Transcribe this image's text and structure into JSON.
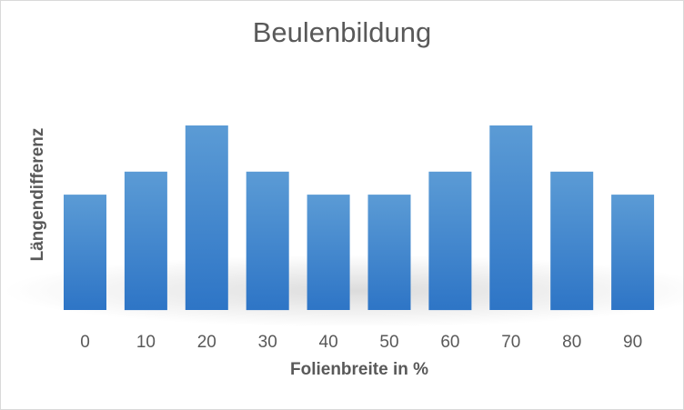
{
  "chart_data": {
    "type": "bar",
    "title": "Beulenbildung",
    "xlabel": "Folienbreite in %",
    "ylabel": "Längendifferenz",
    "categories": [
      "0",
      "10",
      "20",
      "30",
      "40",
      "50",
      "60",
      "70",
      "80",
      "90"
    ],
    "values": [
      5,
      6,
      8,
      6,
      5,
      5,
      6,
      8,
      6,
      5
    ],
    "ylim": [
      0,
      8
    ],
    "grid": false,
    "legend": "none",
    "bar_color": "#5b9bd5",
    "bar_color_dark": "#2e75c6"
  }
}
